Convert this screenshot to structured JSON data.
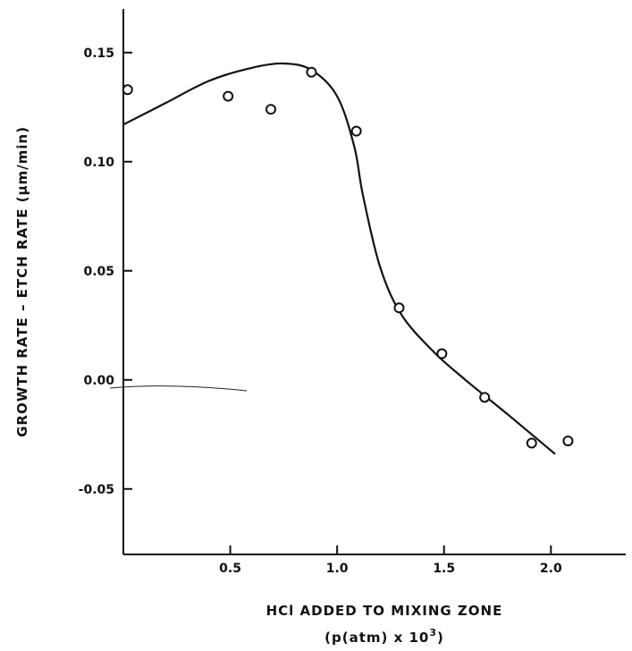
{
  "chart_data": {
    "type": "scatter",
    "xlabel": "HCl ADDED TO MIXING ZONE",
    "xlabel_sub": "(p(atm) x 10",
    "xlabel_sup": "3",
    "xlabel_close": ")",
    "ylabel": "GROWTH RATE – ETCH RATE (μm/min)",
    "xlim": [
      0.0,
      2.35
    ],
    "ylim": [
      -0.08,
      0.17
    ],
    "x_ticks": [
      0.5,
      1.0,
      1.5,
      2.0
    ],
    "x_tick_labels": [
      "0.5",
      "1.0",
      "1.5",
      "2.0"
    ],
    "y_ticks": [
      -0.05,
      0.0,
      0.05,
      0.1,
      0.15
    ],
    "y_tick_labels": [
      "-0.05",
      "0.00",
      "0.05",
      "0.10",
      "0.15"
    ],
    "grid": false,
    "series": [
      {
        "kind": "points",
        "marker": "open-circle",
        "x": [
          0.02,
          0.49,
          0.69,
          0.88,
          1.09,
          1.29,
          1.49,
          1.69,
          1.91,
          2.08
        ],
        "y": [
          0.133,
          0.13,
          0.124,
          0.141,
          0.114,
          0.033,
          0.012,
          -0.008,
          -0.029,
          -0.028
        ]
      },
      {
        "kind": "fit-curve",
        "x": [
          0.0,
          0.2,
          0.4,
          0.6,
          0.75,
          0.88,
          1.0,
          1.08,
          1.12,
          1.2,
          1.3,
          1.45,
          1.6,
          1.8,
          2.02
        ],
        "y": [
          0.117,
          0.127,
          0.137,
          0.143,
          0.145,
          0.142,
          0.13,
          0.107,
          0.085,
          0.052,
          0.03,
          0.013,
          0.0,
          -0.016,
          -0.034
        ]
      }
    ]
  }
}
